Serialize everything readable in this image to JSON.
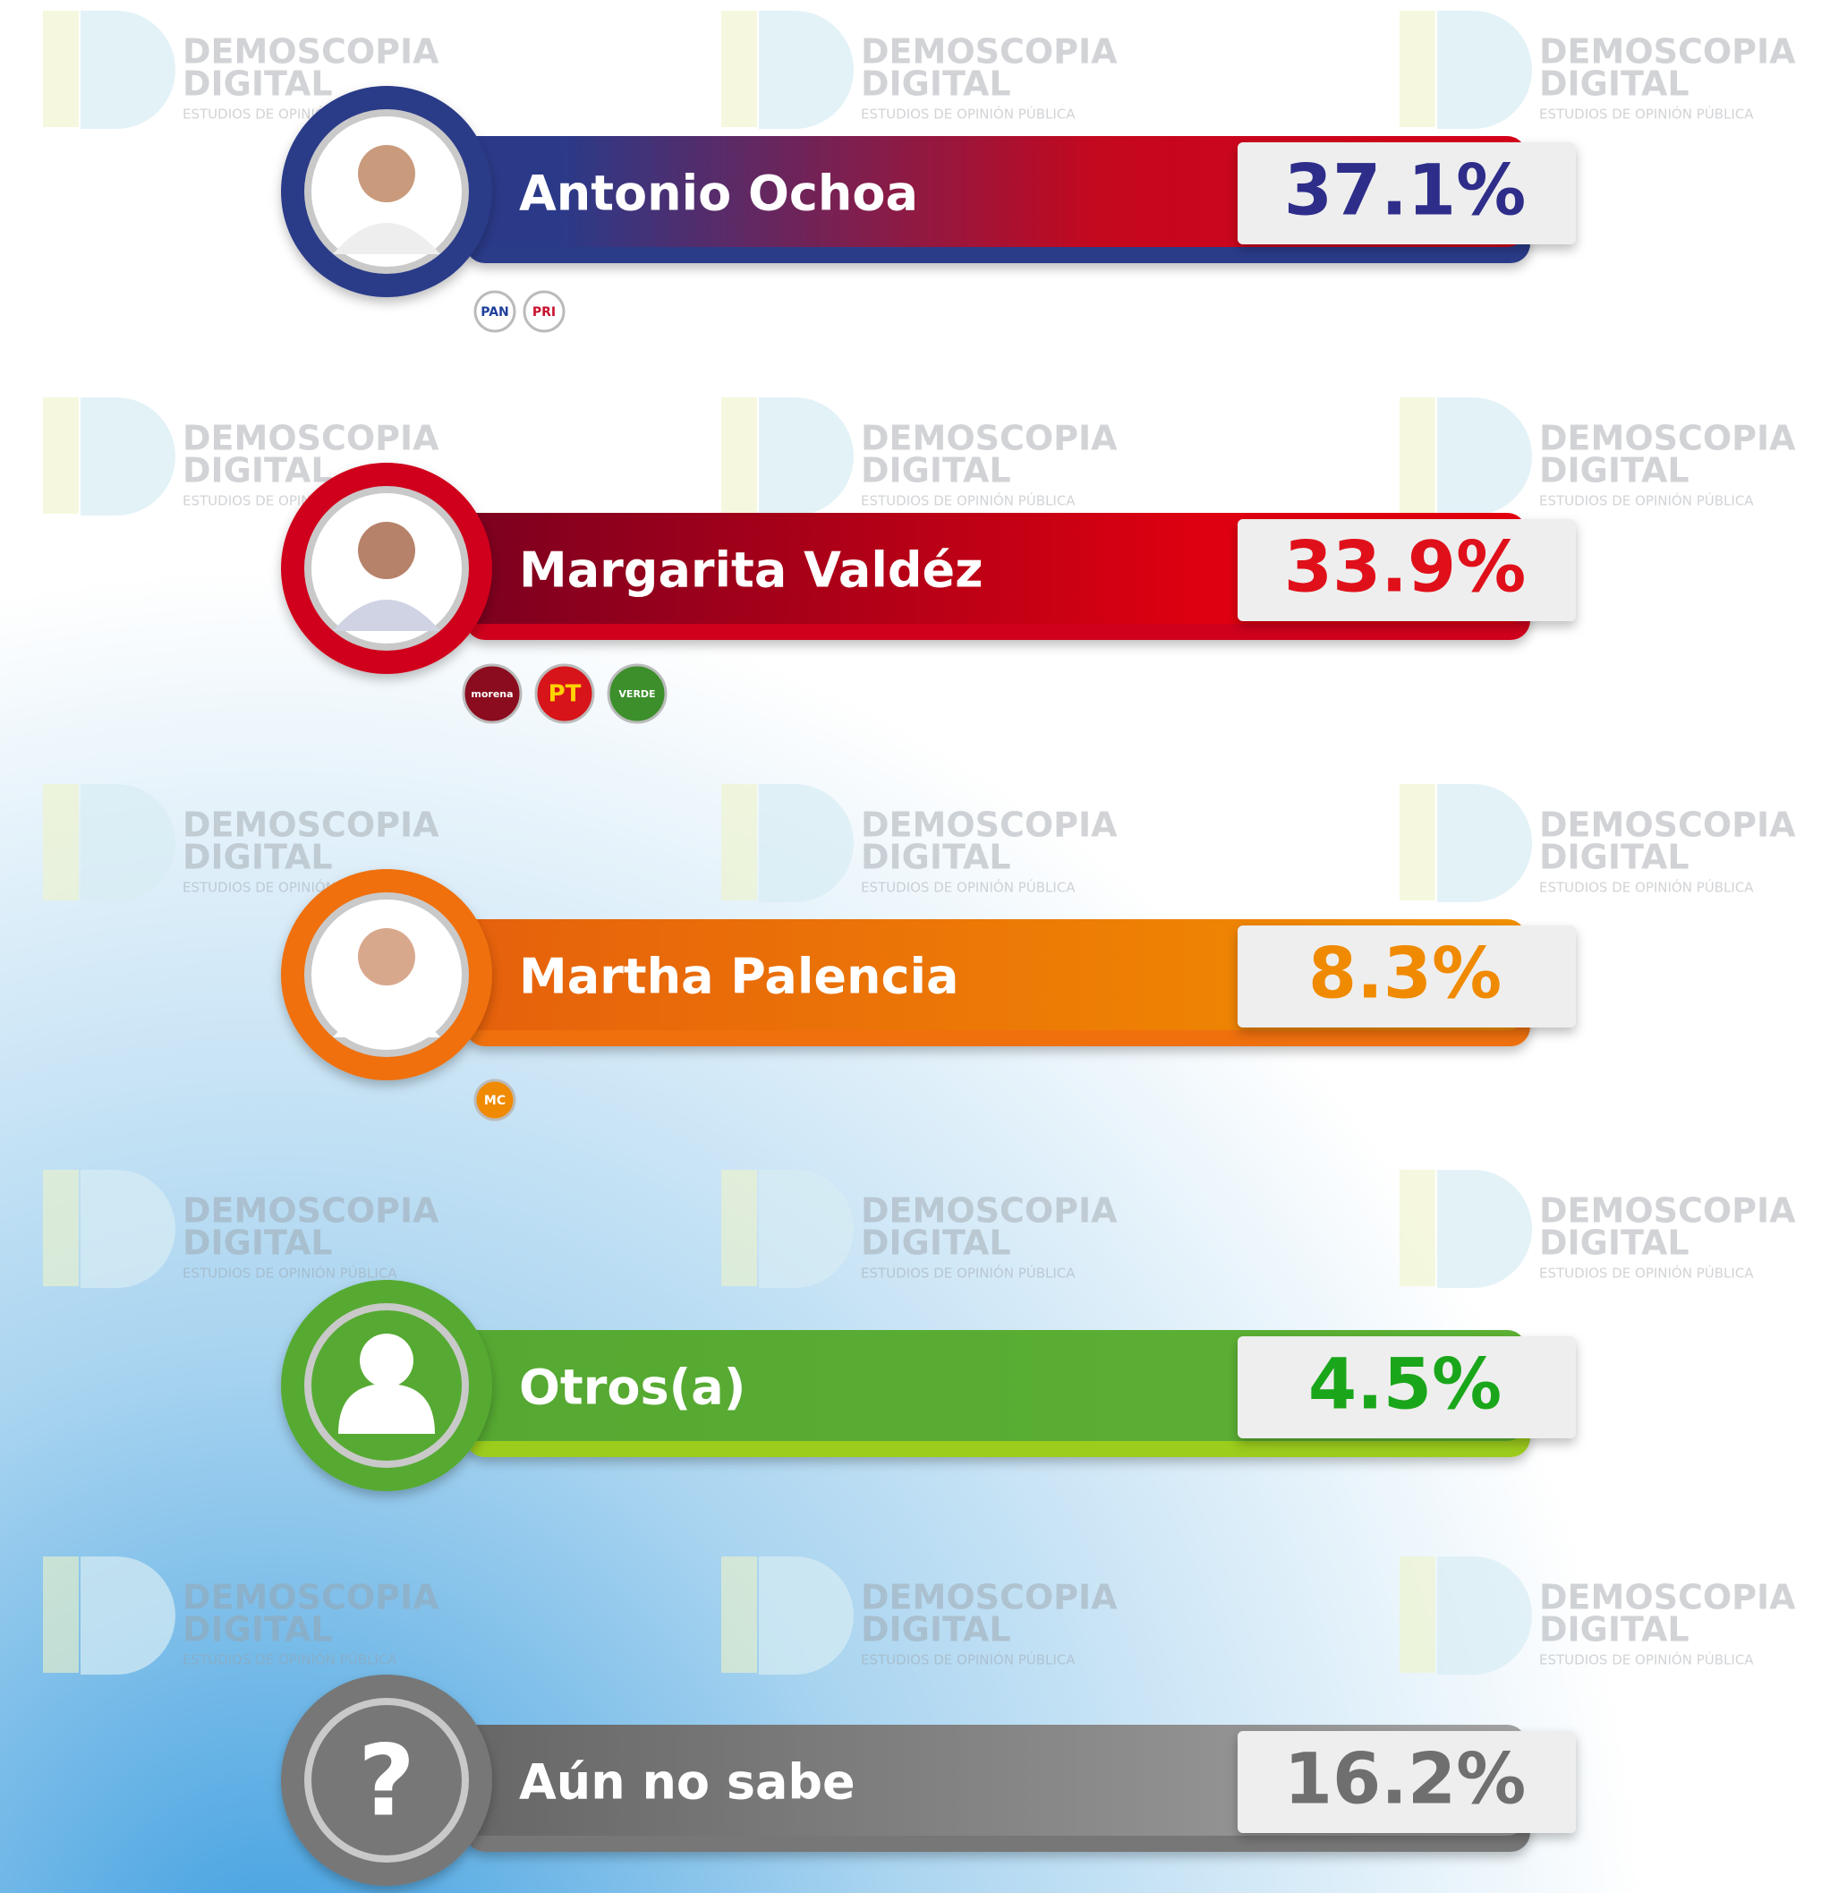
{
  "watermark": {
    "line1": "DEMOSCOPIA",
    "line2": "DIGITAL",
    "line3": "ESTUDIOS DE OPINIÓN PÚBLICA"
  },
  "candidates": [
    {
      "name": "Antonio Ochoa",
      "value": "37.1%",
      "parties": [
        "PAN",
        "PRI"
      ]
    },
    {
      "name": "Margarita Valdéz",
      "value": "33.9%",
      "parties": [
        "morena",
        "PT",
        "VERDE"
      ]
    },
    {
      "name": "Martha Palencia",
      "value": "8.3%",
      "parties": [
        "MC"
      ]
    },
    {
      "name": "Otros(a)",
      "value": "4.5%",
      "parties": []
    },
    {
      "name": "Aún no sabe",
      "value": "16.2%",
      "parties": [],
      "icon": "?"
    }
  ]
}
